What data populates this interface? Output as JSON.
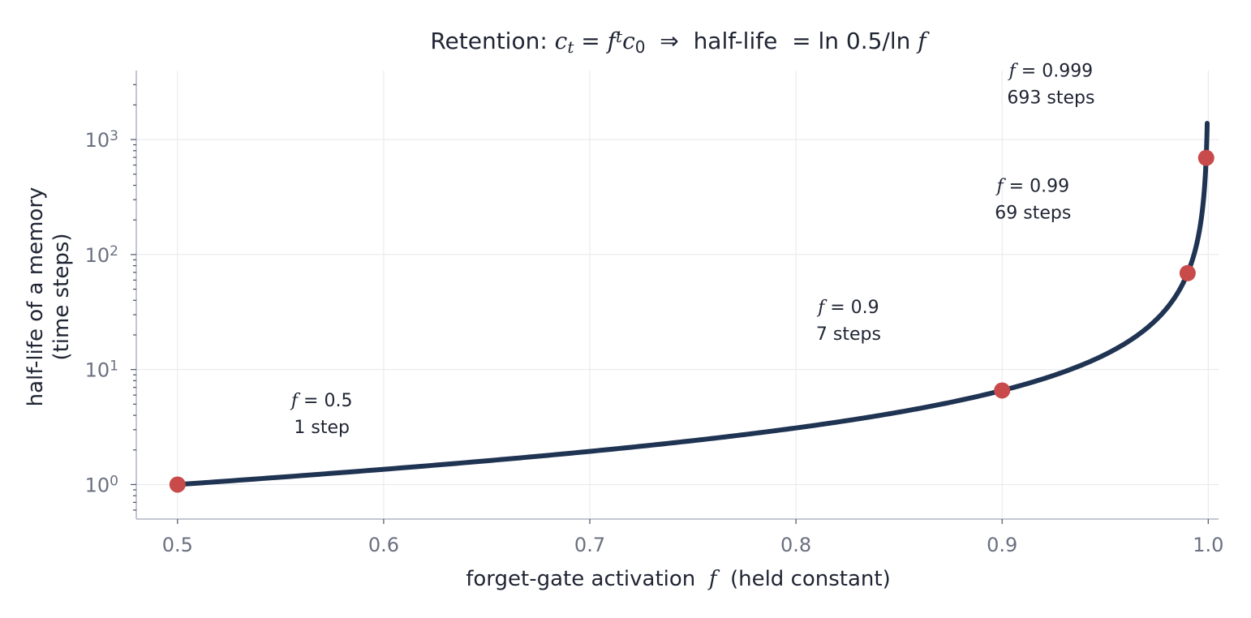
{
  "colors": {
    "curve": "#1f3352",
    "point": "#c84a4a",
    "grid": "#e6e8ec",
    "axis": "#b0b4c4"
  },
  "chart_data": {
    "type": "line",
    "title": {
      "prefix": "Retention: ",
      "eq_c": "c",
      "eq_t": "t",
      "eq_equals": " = ",
      "eq_f": "f",
      "eq_sup": "t",
      "eq_c0": "c",
      "eq_0": "0",
      "arrow": "  ⇒  ",
      "suffix_a": "half-life  = ln 0.5/ln ",
      "suffix_f": "f"
    },
    "xlabel": {
      "before": "forget-gate activation  ",
      "var": "f",
      "after": "  (held constant)"
    },
    "ylabel_line1": "half-life of a memory",
    "ylabel_line2": "(time steps)",
    "xlim": [
      0.48,
      1.005
    ],
    "ylim_log10": [
      -0.3,
      3.6
    ],
    "y_scale": "log",
    "grid": true,
    "x_ticks": [
      "0.5",
      "0.6",
      "0.7",
      "0.8",
      "0.9",
      "1.0"
    ],
    "y_ticks": [
      {
        "base": "10",
        "exp": "0"
      },
      {
        "base": "10",
        "exp": "1"
      },
      {
        "base": "10",
        "exp": "2"
      },
      {
        "base": "10",
        "exp": "3"
      }
    ],
    "curve": {
      "formula": "ln(0.5)/ln(f)",
      "f_start": 0.5,
      "f_end": 0.9995
    },
    "points": [
      {
        "f": 0.5,
        "half_life": 1
      },
      {
        "f": 0.9,
        "half_life": 6.58
      },
      {
        "f": 0.99,
        "half_life": 68.97
      },
      {
        "f": 0.999,
        "half_life": 692.8
      }
    ],
    "annotations": [
      {
        "var": "f",
        "eq": " = 0.5",
        "steps": "1 step",
        "x": 0.57,
        "y": 4.5
      },
      {
        "var": "f",
        "eq": " = 0.9",
        "steps": "7 steps",
        "x": 0.8255,
        "y": 29
      },
      {
        "var": "f",
        "eq": " = 0.99",
        "steps": "69 steps",
        "x": 0.915,
        "y": 330
      },
      {
        "var": "f",
        "eq": " = 0.999",
        "steps": "693 steps",
        "x": 0.9237,
        "y": 3300
      }
    ]
  }
}
